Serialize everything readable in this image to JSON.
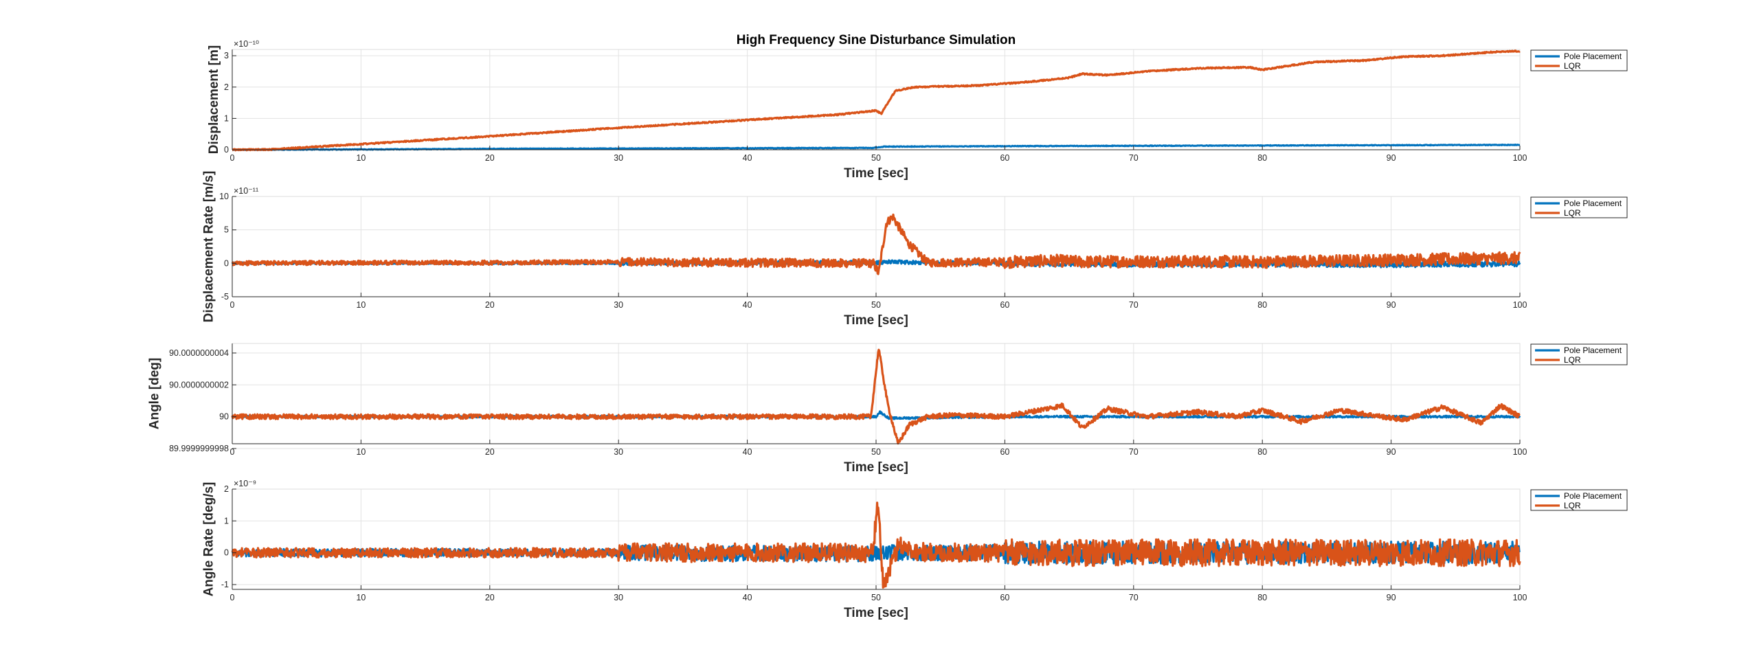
{
  "figure": {
    "title": "High Frequency Sine Disturbance Simulation",
    "colors": {
      "pole_placement": "#0072BD",
      "lqr": "#D95319",
      "axis": "#262626",
      "grid": "#e3e3e3"
    }
  },
  "chart_data": [
    {
      "type": "line",
      "title": "High Frequency Sine Disturbance Simulation",
      "xlabel": "Time [sec]",
      "ylabel": "Displacement [m]",
      "exponent_label": "×10⁻¹⁰",
      "xlim": [
        0,
        100
      ],
      "ylim": [
        0,
        3.2e-10
      ],
      "x_ticks": [
        0,
        10,
        20,
        30,
        40,
        50,
        60,
        70,
        80,
        90,
        100
      ],
      "y_ticks": [
        0,
        1e-10,
        2e-10,
        3e-10
      ],
      "y_tick_labels": [
        "0",
        "1",
        "2",
        "3"
      ],
      "grid": true,
      "legend_position": "right",
      "series": [
        {
          "name": "Pole Placement",
          "color": "#0072BD",
          "noise": 1e-12,
          "x": [
            0,
            10,
            20,
            30,
            40,
            49.8,
            50.6,
            60,
            70,
            80,
            90,
            100
          ],
          "y": [
            0,
            1e-12,
            3e-12,
            4e-12,
            5e-12,
            6e-12,
            1e-11,
            1.15e-11,
            1.25e-11,
            1.35e-11,
            1.45e-11,
            1.55e-11
          ]
        },
        {
          "name": "LQR",
          "color": "#D95319",
          "noise": 2e-12,
          "x": [
            0,
            3,
            10,
            20,
            30,
            40,
            47,
            50,
            50.4,
            51.5,
            53,
            58,
            62,
            65,
            66,
            68,
            71,
            75,
            79,
            80,
            84,
            88,
            91,
            94,
            98,
            100
          ],
          "y": [
            0,
            1e-12,
            1.8e-11,
            4.3e-11,
            7e-11,
            9.5e-11,
            1.12e-10,
            1.25e-10,
            1.15e-10,
            1.88e-10,
            2e-10,
            2.05e-10,
            2.17e-10,
            2.3e-10,
            2.42e-10,
            2.38e-10,
            2.5e-10,
            2.6e-10,
            2.63e-10,
            2.55e-10,
            2.8e-10,
            2.85e-10,
            2.97e-10,
            3e-10,
            3.12e-10,
            3.15e-10
          ]
        }
      ]
    },
    {
      "type": "line",
      "xlabel": "Time [sec]",
      "ylabel": "Displacement Rate [m/s]",
      "exponent_label": "×10⁻¹¹",
      "xlim": [
        0,
        100
      ],
      "ylim": [
        -5e-11,
        1e-10
      ],
      "x_ticks": [
        0,
        10,
        20,
        30,
        40,
        50,
        60,
        70,
        80,
        90,
        100
      ],
      "y_ticks": [
        -5e-11,
        0,
        5e-11,
        1e-10
      ],
      "y_tick_labels": [
        "-5",
        "0",
        "5",
        "10"
      ],
      "grid": true,
      "legend_position": "right",
      "series": [
        {
          "name": "Pole Placement",
          "color": "#0072BD",
          "noise": 4e-12,
          "x": [
            0,
            30,
            50,
            51,
            60,
            70,
            80,
            90,
            100
          ],
          "y": [
            0,
            0,
            1e-12,
            2e-12,
            0,
            -1e-12,
            -1e-12,
            -2e-12,
            -1e-12
          ]
        },
        {
          "name": "LQR",
          "color": "#D95319",
          "noise": 9e-12,
          "x": [
            0,
            10,
            20,
            30,
            40,
            49.8,
            50.2,
            50.8,
            51.3,
            52.5,
            54,
            60,
            64,
            66,
            70,
            80,
            90,
            100
          ],
          "y": [
            0,
            1e-12,
            1e-12,
            2e-12,
            1e-12,
            0,
            -1.5e-11,
            6e-11,
            7e-11,
            3e-11,
            1e-12,
            2e-12,
            4e-12,
            2e-12,
            3e-12,
            2e-12,
            5e-12,
            8e-12
          ]
        }
      ]
    },
    {
      "type": "line",
      "xlabel": "Time [sec]",
      "ylabel": "Angle [deg]",
      "xlim": [
        0,
        100
      ],
      "ylim": [
        89.99999999983,
        90.00000000046
      ],
      "x_ticks": [
        0,
        10,
        20,
        30,
        40,
        50,
        60,
        70,
        80,
        90,
        100
      ],
      "y_ticks": [
        89.9999999998,
        90,
        90.0000000002,
        90.0000000004
      ],
      "y_tick_labels": [
        "89.9999999998",
        "90",
        "90.0000000002",
        "90.0000000004"
      ],
      "grid": true,
      "legend_position": "right",
      "series": [
        {
          "name": "Pole Placement",
          "color": "#0072BD",
          "noise": 6e-12,
          "x": [
            0,
            30,
            50,
            50.3,
            51,
            60,
            80,
            100
          ],
          "y": [
            90,
            90,
            90,
            90.00000000003,
            89.99999999999,
            90,
            90,
            90
          ]
        },
        {
          "name": "LQR",
          "color": "#D95319",
          "noise": 1.5e-11,
          "x": [
            0,
            15,
            28,
            45,
            49.6,
            50.2,
            50.9,
            51.7,
            52.6,
            54,
            56,
            60,
            64.5,
            66,
            68,
            71,
            75,
            78,
            80,
            83,
            86,
            91,
            94,
            97,
            98.5,
            100
          ],
          "y": [
            90,
            90,
            90,
            90,
            90,
            90.00000000043,
            90.00000000008,
            89.99999999983,
            89.99999999995,
            90,
            90.00000000001,
            90,
            90.00000000007,
            89.99999999993,
            90.00000000005,
            90,
            90.00000000003,
            90,
            90.00000000004,
            89.99999999997,
            90.00000000004,
            89.99999999998,
            90.00000000006,
            89.99999999996,
            90.00000000007,
            90
          ]
        }
      ]
    },
    {
      "type": "line",
      "xlabel": "Time [sec]",
      "ylabel": "Angle Rate [deg/s]",
      "exponent_label": "×10⁻⁹",
      "xlim": [
        0,
        100
      ],
      "ylim": [
        -1.15e-09,
        2e-09
      ],
      "x_ticks": [
        0,
        10,
        20,
        30,
        40,
        50,
        60,
        70,
        80,
        90,
        100
      ],
      "y_ticks": [
        -1e-09,
        0,
        1e-09,
        2e-09
      ],
      "y_tick_labels": [
        "-1",
        "0",
        "1",
        "2"
      ],
      "grid": true,
      "legend_position": "right",
      "series": [
        {
          "name": "Pole Placement",
          "color": "#0072BD",
          "noise": 3.5e-10,
          "x": [
            0,
            20,
            32,
            50,
            51,
            60,
            70,
            80,
            100
          ],
          "y": [
            0,
            0,
            0,
            -5e-11,
            0,
            0,
            0,
            0,
            0
          ]
        },
        {
          "name": "LQR",
          "color": "#D95319",
          "noise": 4.2e-10,
          "x": [
            0,
            20,
            30,
            49.7,
            50.15,
            50.55,
            51.1,
            51.8,
            52.5,
            54,
            100
          ],
          "y": [
            0,
            0,
            0,
            0,
            1.5e-09,
            -1e-09,
            -5e-10,
            3e-10,
            1e-10,
            0,
            0
          ]
        }
      ]
    }
  ]
}
